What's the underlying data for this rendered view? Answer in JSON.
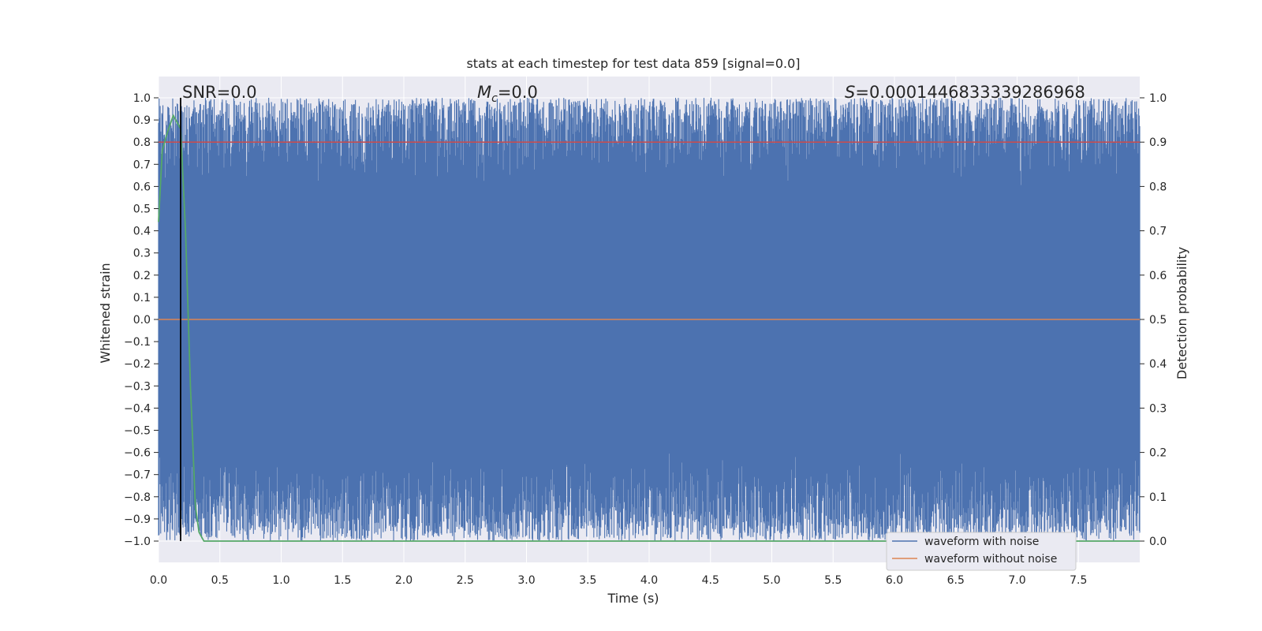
{
  "chart_data": {
    "type": "line",
    "title": "stats at each timestep for test data 859 [signal=0.0]",
    "xlabel": "Time (s)",
    "ylabel_left": "Whitened strain",
    "ylabel_right": "Detection probability",
    "xlim": [
      0.0,
      8.0
    ],
    "ylim_left": [
      -1.0,
      1.0
    ],
    "ylim_right": [
      0.0,
      1.0
    ],
    "x_ticks": [
      0.0,
      0.5,
      1.0,
      1.5,
      2.0,
      2.5,
      3.0,
      3.5,
      4.0,
      4.5,
      5.0,
      5.5,
      6.0,
      6.5,
      7.0,
      7.5
    ],
    "x_tick_labels": [
      "0.0",
      "0.5",
      "1.0",
      "1.5",
      "2.0",
      "2.5",
      "3.0",
      "3.5",
      "4.0",
      "4.5",
      "5.0",
      "5.5",
      "6.0",
      "6.5",
      "7.0",
      "7.5"
    ],
    "y_left_ticks": [
      1.0,
      0.9,
      0.8,
      0.7,
      0.6,
      0.5,
      0.4,
      0.3,
      0.2,
      0.1,
      0.0,
      -0.1,
      -0.2,
      -0.3,
      -0.4,
      -0.5,
      -0.6,
      -0.7,
      -0.8,
      -0.9,
      -1.0
    ],
    "y_left_tick_labels": [
      "1.0",
      "0.9",
      "0.8",
      "0.7",
      "0.6",
      "0.5",
      "0.4",
      "0.3",
      "0.2",
      "0.1",
      "0.0",
      "−0.1",
      "−0.2",
      "−0.3",
      "−0.4",
      "−0.5",
      "−0.6",
      "−0.7",
      "−0.8",
      "−0.9",
      "−1.0"
    ],
    "y_right_ticks": [
      1.0,
      0.9,
      0.8,
      0.7,
      0.6,
      0.5,
      0.4,
      0.3,
      0.2,
      0.1,
      0.0
    ],
    "y_right_tick_labels": [
      "1.0",
      "0.9",
      "0.8",
      "0.7",
      "0.6",
      "0.5",
      "0.4",
      "0.3",
      "0.2",
      "0.1",
      "0.0"
    ],
    "annotations": {
      "snr": "SNR=0.0",
      "mc_symbol": "M",
      "mc_sub": "c",
      "mc_value": "=0.0",
      "s_symbol": "S",
      "s_value": "=0.0001446833339286968"
    },
    "vertical_marker_x": 0.18,
    "threshold_probability": 0.9,
    "series": [
      {
        "name": "waveform with noise",
        "color": "#4c72b0",
        "axis": "left",
        "description": "dense whitened strain noise filling roughly -1.0 to 1.0"
      },
      {
        "name": "waveform without noise",
        "color": "#dd8452",
        "axis": "left",
        "values": "flat at 0.0"
      },
      {
        "name": "detection probability",
        "color": "#55a868",
        "axis": "right",
        "x": [
          0.0,
          0.03,
          0.07,
          0.12,
          0.18,
          0.22,
          0.26,
          0.3,
          0.33,
          0.37,
          8.0
        ],
        "values": [
          0.72,
          0.88,
          0.92,
          0.96,
          0.93,
          0.7,
          0.35,
          0.08,
          0.02,
          0.0,
          0.0
        ]
      },
      {
        "name": "threshold",
        "color": "#c44e52",
        "axis": "right",
        "values": "flat at 0.9"
      }
    ],
    "legend": {
      "placement": "lower-right",
      "entries": [
        {
          "label": "waveform with noise",
          "color": "#4c72b0"
        },
        {
          "label": "waveform without noise",
          "color": "#dd8452"
        }
      ]
    },
    "colors": {
      "plot_background": "#eaeaf2",
      "grid": "#ffffff",
      "vertical_marker": "#000000",
      "text": "#262626"
    }
  }
}
